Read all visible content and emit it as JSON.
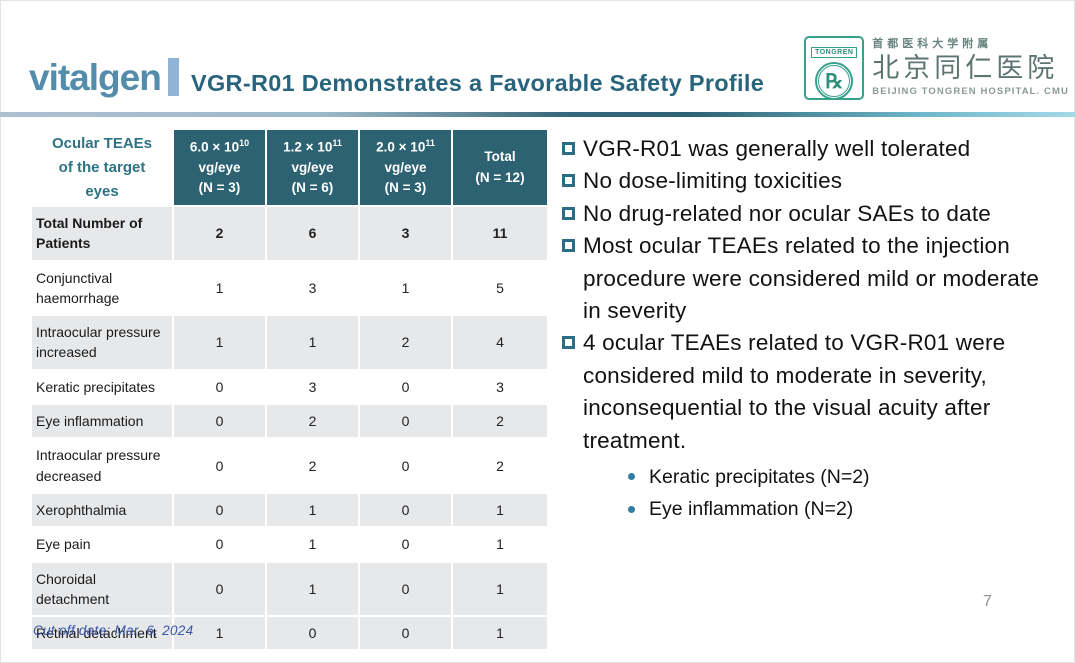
{
  "brand": {
    "wordmark": "vitalgen",
    "title": "VGR-R01 Demonstrates a Favorable Safety Profile"
  },
  "hospital": {
    "badge_label": "TONGREN",
    "badge_symbol": "℞",
    "cn_affiliation": "首都医科大学附属",
    "cn_name": "北京同仁医院",
    "en_name": "BEIJING TONGREN HOSPITAL. CMU"
  },
  "table": {
    "corner_header": "Ocular TEAEs of the target eyes",
    "dose_columns": [
      {
        "base": "6.0 × 10",
        "sup": "10",
        "unit": "vg/eye",
        "n": "(N = 3)"
      },
      {
        "base": "1.2 × 10",
        "sup": "11",
        "unit": "vg/eye",
        "n": "(N = 6)"
      },
      {
        "base": "2.0 × 10",
        "sup": "11",
        "unit": "vg/eye",
        "n": "(N = 3)"
      },
      {
        "base": "Total",
        "sup": "",
        "unit": "",
        "n": "(N = 12)"
      }
    ],
    "rows": [
      {
        "label": "Total Number of Patients",
        "values": [
          "2",
          "6",
          "3",
          "11"
        ],
        "bold": true,
        "shaded": true
      },
      {
        "label": "Conjunctival haemorrhage",
        "values": [
          "1",
          "3",
          "1",
          "5"
        ],
        "bold": false,
        "shaded": false
      },
      {
        "label": "Intraocular pressure increased",
        "values": [
          "1",
          "1",
          "2",
          "4"
        ],
        "bold": false,
        "shaded": true
      },
      {
        "label": "Keratic precipitates",
        "values": [
          "0",
          "3",
          "0",
          "3"
        ],
        "bold": false,
        "shaded": false
      },
      {
        "label": "Eye inflammation",
        "values": [
          "0",
          "2",
          "0",
          "2"
        ],
        "bold": false,
        "shaded": true
      },
      {
        "label": "Intraocular pressure decreased",
        "values": [
          "0",
          "2",
          "0",
          "2"
        ],
        "bold": false,
        "shaded": false
      },
      {
        "label": "Xerophthalmia",
        "values": [
          "0",
          "1",
          "0",
          "1"
        ],
        "bold": false,
        "shaded": true
      },
      {
        "label": "Eye pain",
        "values": [
          "0",
          "1",
          "0",
          "1"
        ],
        "bold": false,
        "shaded": false
      },
      {
        "label": "Choroidal detachment",
        "values": [
          "0",
          "1",
          "0",
          "1"
        ],
        "bold": false,
        "shaded": true
      },
      {
        "label": "Retinal detachment",
        "values": [
          "1",
          "0",
          "0",
          "1"
        ],
        "bold": false,
        "shaded": true
      }
    ]
  },
  "bullets": [
    "VGR-R01 was generally well tolerated",
    "No dose-limiting toxicities",
    "No drug-related nor ocular SAEs to date",
    "Most ocular TEAEs related to the injection procedure were considered mild or moderate in severity",
    "4 ocular TEAEs related to VGR-R01 were considered mild to moderate in severity, inconsequential to the visual acuity after treatment."
  ],
  "sub_bullets": [
    "Keratic precipitates (N=2)",
    "Eye inflammation (N=2)"
  ],
  "footer": {
    "cutoff_note": "Cut off date: Mar. 6,  2024",
    "page_number": "7"
  },
  "colors": {
    "header_teal": "#2d6272",
    "title_blue": "#29647d",
    "wordmark_blue": "#548cab",
    "row_shade": "#e7e8ea",
    "bullet_teal": "#2a6e86",
    "footer_blue": "#3b57a7",
    "badge_green": "#37a18c",
    "page_gray": "#8f8f8f"
  }
}
